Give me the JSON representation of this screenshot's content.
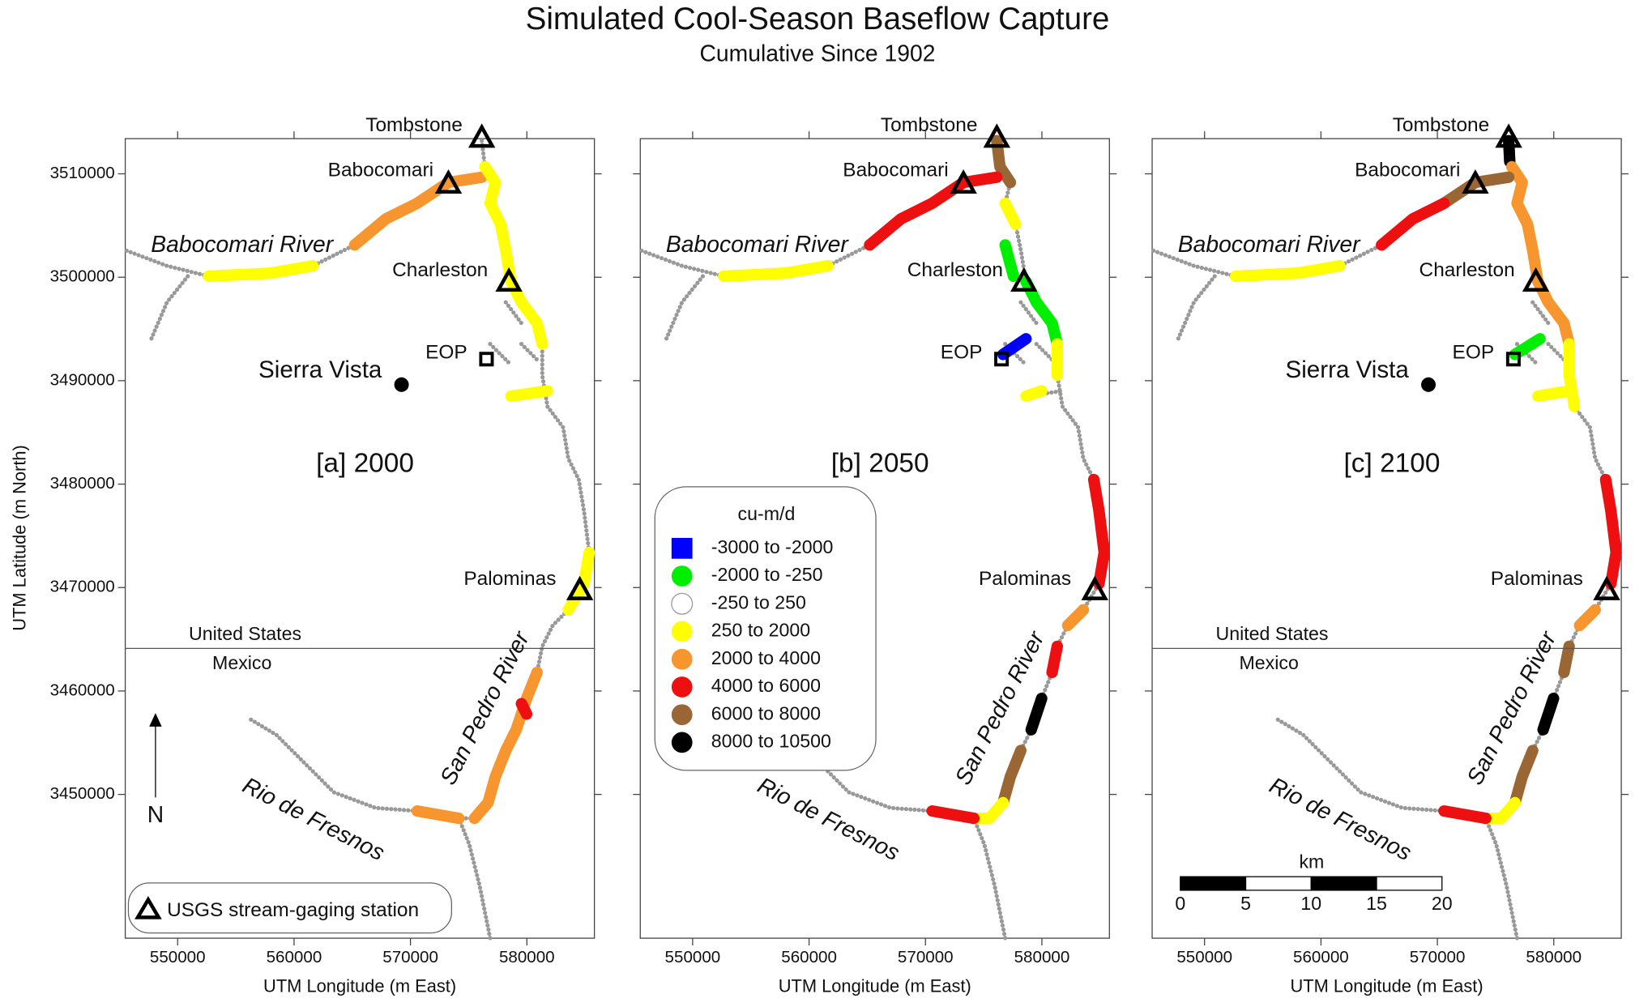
{
  "title": "Simulated Cool-Season Baseflow Capture",
  "subtitle": "Cumulative Since 1902",
  "x_axis_label": "UTM Longitude (m East)",
  "y_axis_label": "UTM Latitude (m North)",
  "xlim": [
    545500,
    585800
  ],
  "ylim": [
    3436100,
    3513400
  ],
  "xticks": [
    550000,
    560000,
    570000,
    580000
  ],
  "yticks": [
    3450000,
    3460000,
    3470000,
    3480000,
    3490000,
    3500000,
    3510000
  ],
  "panels": [
    {
      "label": "[a] 2000"
    },
    {
      "label": "[b] 2050"
    },
    {
      "label": "[c] 2100"
    }
  ],
  "places": {
    "tombstone": "Tombstone",
    "babocomari": "Babocomari",
    "babocomari_river": "Babocomari River",
    "charleston": "Charleston",
    "eop": "EOP",
    "sierra_vista": "Sierra Vista",
    "palominas": "Palominas",
    "united_states": "United States",
    "mexico": "Mexico",
    "san_pedro_river": "San Pedro River",
    "rio_de_fresnos": "Rio de Fresnos",
    "north": "N"
  },
  "legend": {
    "title": "cu-m/d",
    "entries": [
      {
        "label": "-3000  to  -2000",
        "color": "#0000ff"
      },
      {
        "label": "-2000  to  -250",
        "color": "#00ee00"
      },
      {
        "label": "-250  to  250",
        "color": "#ffffff"
      },
      {
        "label": "250  to  2000",
        "color": "#ffff00"
      },
      {
        "label": "2000  to  4000",
        "color": "#f7962e"
      },
      {
        "label": "4000  to  6000",
        "color": "#ee1010"
      },
      {
        "label": "6000  to  8000",
        "color": "#9a6634"
      },
      {
        "label": "8000  to  10500",
        "color": "#000000"
      }
    ]
  },
  "gage_legend": "USGS stream-gaging station",
  "scale_bar": {
    "title": "km",
    "ticks": [
      0,
      5,
      10,
      15,
      20
    ]
  }
}
